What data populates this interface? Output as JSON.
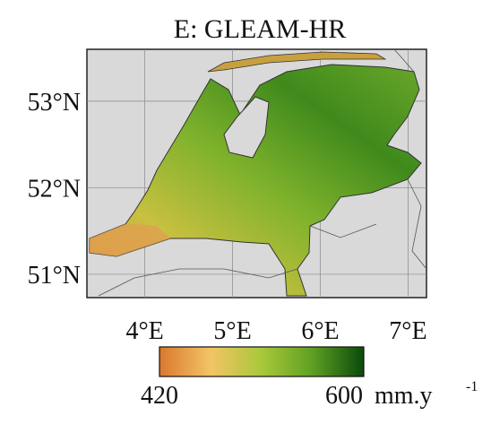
{
  "map": {
    "title": "E: GLEAM-HR",
    "lon_range": [
      3.34,
      7.21
    ],
    "lat_range": [
      50.73,
      53.6
    ],
    "lon_ticks": [
      {
        "value": 4,
        "label": "4°E"
      },
      {
        "value": 5,
        "label": "5°E"
      },
      {
        "value": 6,
        "label": "6°E"
      },
      {
        "value": 7,
        "label": "7°E"
      }
    ],
    "lat_ticks": [
      {
        "value": 53,
        "label": "53°N"
      },
      {
        "value": 52,
        "label": "52°N"
      },
      {
        "value": 51,
        "label": "51°N"
      }
    ],
    "colorbar": {
      "min": 420,
      "max": 600,
      "unit": "mm.y",
      "unit_exponent": "-1",
      "colors": [
        "#d9782e",
        "#f3c465",
        "#a9c83a",
        "#5e9f22",
        "#0b4a0c"
      ]
    }
  }
}
